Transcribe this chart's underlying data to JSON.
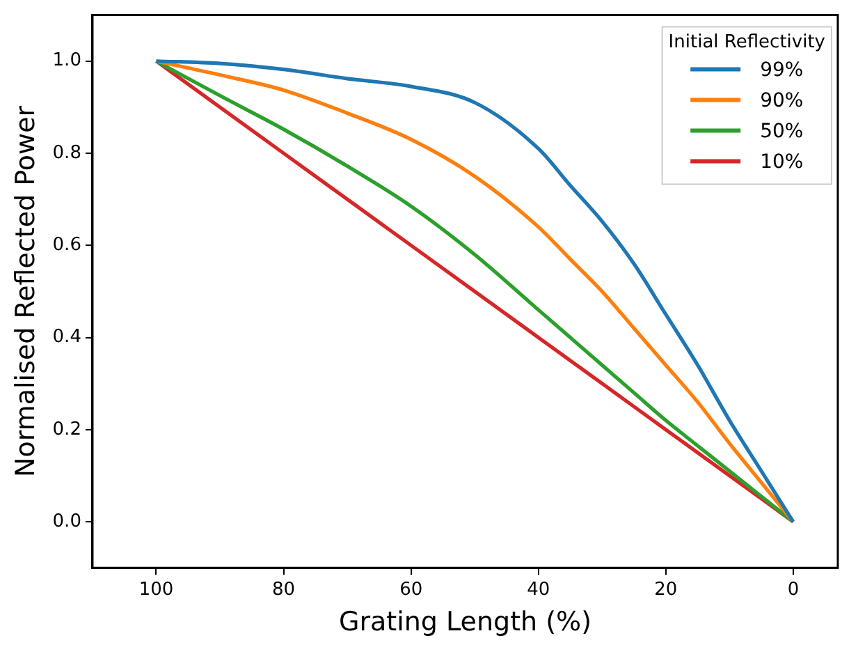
{
  "chart_data": {
    "type": "line",
    "xlabel": "Grating Length (%)",
    "ylabel": "Normalised Reflected Power",
    "legend_title": "Initial Reflectivity",
    "legend": "top right",
    "grid": false,
    "marker": "none",
    "line_style": "solid",
    "x": [
      100,
      90,
      80,
      70,
      60,
      50,
      40,
      35,
      30,
      25,
      20,
      15,
      10,
      5,
      0
    ],
    "xlim": [
      110,
      -7
    ],
    "xticks": [
      100,
      80,
      60,
      40,
      20,
      0
    ],
    "ylim": [
      -0.1,
      1.1
    ],
    "yticks": [
      {
        "value": 0,
        "label": "0.0"
      },
      {
        "value": 0.2,
        "label": "0.2"
      },
      {
        "value": 0.4,
        "label": "0.4"
      },
      {
        "value": 0.6,
        "label": "0.6"
      },
      {
        "value": 0.8,
        "label": "0.8"
      },
      {
        "value": 1,
        "label": "1.0"
      }
    ],
    "series": [
      {
        "name": "99%",
        "color": "#1f77b4",
        "values": [
          1,
          0.995,
          0.982,
          0.962,
          0.945,
          0.91,
          0.81,
          0.73,
          0.652,
          0.56,
          0.45,
          0.34,
          0.22,
          0.11,
          0
        ]
      },
      {
        "name": "90%",
        "color": "#ff7f0e",
        "values": [
          1,
          0.97,
          0.937,
          0.887,
          0.83,
          0.75,
          0.64,
          0.57,
          0.5,
          0.42,
          0.34,
          0.26,
          0.17,
          0.085,
          0
        ]
      },
      {
        "name": "50%",
        "color": "#2ca02c",
        "values": [
          1,
          0.925,
          0.852,
          0.772,
          0.685,
          0.58,
          0.46,
          0.4,
          0.34,
          0.28,
          0.22,
          0.165,
          0.11,
          0.055,
          0
        ]
      },
      {
        "name": "10%",
        "color": "#d62728",
        "values": [
          1,
          0.9,
          0.8,
          0.7,
          0.6,
          0.5,
          0.4,
          0.35,
          0.3,
          0.25,
          0.2,
          0.15,
          0.1,
          0.05,
          0
        ]
      }
    ]
  }
}
